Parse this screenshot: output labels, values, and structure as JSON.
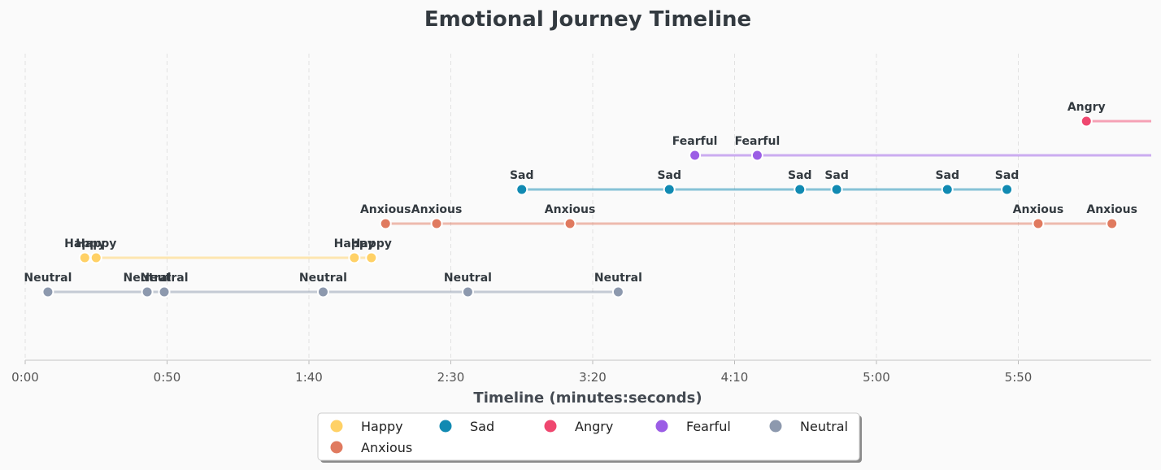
{
  "chart_data": {
    "type": "scatter",
    "title": "Emotional Journey Timeline",
    "xlabel": "Timeline (minutes:seconds)",
    "ylabel": "",
    "xlim": [
      0,
      397
    ],
    "x_tick_values": [
      0,
      50,
      100,
      150,
      200,
      250,
      300,
      350
    ],
    "x_tick_labels": [
      "0:00",
      "0:50",
      "1:40",
      "2:30",
      "3:20",
      "4:10",
      "5:00",
      "5:50"
    ],
    "grid": "vertical dashed",
    "legend_position": "bottom-center",
    "series": [
      {
        "name": "Happy",
        "color": "#ffd166",
        "x": [
          21,
          25,
          116,
          122
        ]
      },
      {
        "name": "Sad",
        "color": "#118ab2",
        "x": [
          175,
          227,
          273,
          286,
          325,
          346
        ]
      },
      {
        "name": "Angry",
        "color": "#ef476f",
        "x": [
          374,
          400
        ]
      },
      {
        "name": "Fearful",
        "color": "#9b5de5",
        "x": [
          236,
          258,
          400
        ]
      },
      {
        "name": "Neutral",
        "color": "#8d99ae",
        "x": [
          8,
          43,
          49,
          105,
          156,
          209
        ]
      },
      {
        "name": "Anxious",
        "color": "#e07a5f",
        "x": [
          127,
          145,
          192,
          357,
          383
        ]
      }
    ],
    "lane_order": [
      "Neutral",
      "Happy",
      "Anxious",
      "Sad",
      "Fearful",
      "Angry"
    ],
    "line_end": {
      "Angry": 400,
      "Fearful": 400
    }
  }
}
